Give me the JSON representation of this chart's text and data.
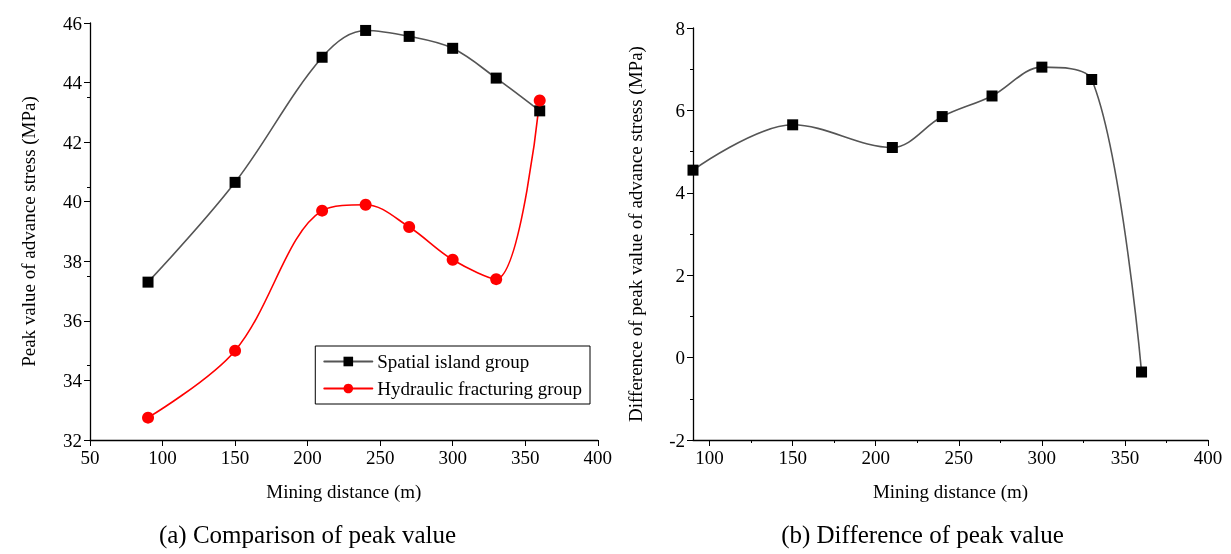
{
  "chart_data": [
    {
      "type": "line",
      "title": "(a) Comparison of peak value",
      "xlabel": "Mining distance (m)",
      "ylabel": "Peak value of advance stress (MPa)",
      "x": [
        90,
        150,
        210,
        240,
        270,
        300,
        330,
        360
      ],
      "series": [
        {
          "name": "Spatial island group",
          "color": "#555555",
          "marker": "square",
          "values": [
            37.3,
            40.65,
            44.85,
            45.75,
            45.55,
            45.15,
            44.15,
            43.05
          ]
        },
        {
          "name": "Hydraulic fracturing group",
          "color": "#ff0000",
          "marker": "circle",
          "values": [
            32.75,
            35.0,
            39.7,
            39.9,
            39.15,
            38.05,
            37.4,
            43.4
          ]
        }
      ],
      "xlim": [
        50,
        400
      ],
      "xticks": [
        50,
        100,
        150,
        200,
        250,
        300,
        350,
        400
      ],
      "ylim": [
        32,
        46
      ],
      "yticks": [
        32,
        34,
        36,
        38,
        40,
        42,
        44,
        46
      ],
      "grid": false,
      "legend": "bottom right"
    },
    {
      "type": "line",
      "title": "(b) Difference of peak value",
      "xlabel": "Mining distance (m)",
      "ylabel": "Difference of peak value of advance stress (MPa)",
      "x": [
        90,
        150,
        210,
        240,
        270,
        300,
        330,
        360
      ],
      "series": [
        {
          "color": "#555555",
          "marker": "square",
          "values": [
            4.55,
            5.65,
            5.1,
            5.85,
            6.35,
            7.05,
            6.75,
            -0.35
          ]
        }
      ],
      "xlim": [
        90,
        400
      ],
      "xticks": [
        100,
        150,
        200,
        250,
        300,
        350,
        400
      ],
      "ylim": [
        -2,
        8
      ],
      "yticks": [
        -2,
        0,
        2,
        4,
        6,
        8
      ],
      "grid": false,
      "legend": false
    }
  ]
}
